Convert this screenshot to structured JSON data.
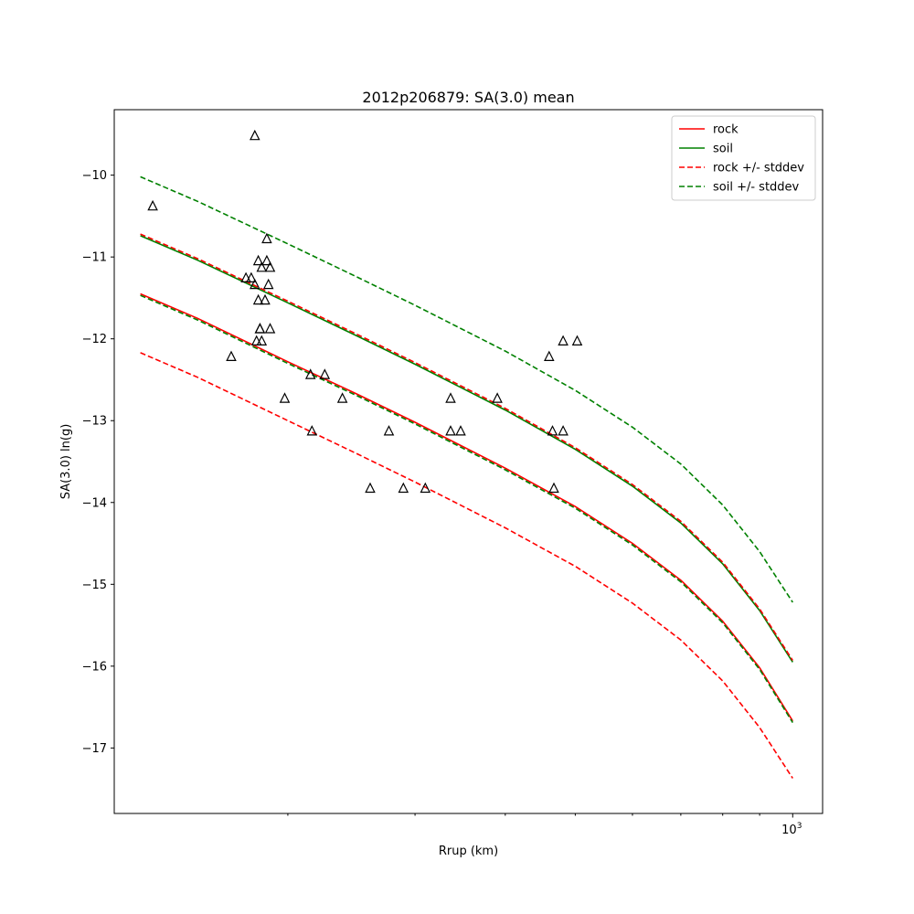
{
  "chart_data": {
    "type": "scatter",
    "title": "2012p206879: SA(3.0) mean",
    "xlabel": "Rrup (km)",
    "ylabel": "SA(3.0) ln(g)",
    "xscale": "log",
    "xlim": [
      115,
      1100
    ],
    "ylim": [
      -17.8,
      -9.2
    ],
    "yticks": [
      -10,
      -11,
      -12,
      -13,
      -14,
      -15,
      -16,
      -17
    ],
    "xtick_major": [
      {
        "value": 1000,
        "base": "10",
        "exp": "3"
      }
    ],
    "xtick_minor": [
      200,
      300,
      400,
      500,
      600,
      700,
      800,
      900
    ],
    "grid": false,
    "legend_position": "top-right",
    "series": [
      {
        "name": "rock",
        "color": "#ff0000",
        "dash": "solid",
        "x": [
          125,
          150,
          200,
          250,
          300,
          400,
          500,
          600,
          700,
          800,
          900,
          1000
        ],
        "y": [
          -11.45,
          -11.75,
          -12.28,
          -12.68,
          -13.02,
          -13.58,
          -14.05,
          -14.5,
          -14.95,
          -15.45,
          -16.02,
          -16.67
        ]
      },
      {
        "name": "soil",
        "color": "#008000",
        "dash": "solid",
        "x": [
          125,
          150,
          200,
          250,
          300,
          400,
          500,
          600,
          700,
          800,
          900,
          1000
        ],
        "y": [
          -10.74,
          -11.04,
          -11.56,
          -11.97,
          -12.31,
          -12.87,
          -13.35,
          -13.8,
          -14.25,
          -14.75,
          -15.32,
          -15.95
        ]
      },
      {
        "name": "rock +/- stddev",
        "color": "#ff0000",
        "dash": "dashed",
        "x": [
          125,
          150,
          200,
          250,
          300,
          400,
          500,
          600,
          700,
          800,
          900,
          1000
        ],
        "y": [
          -10.72,
          -11.02,
          -11.54,
          -11.95,
          -12.29,
          -12.85,
          -13.33,
          -13.78,
          -14.23,
          -14.73,
          -15.3,
          -15.93
        ]
      },
      {
        "name": "rock +/- stddev",
        "color": "#ff0000",
        "dash": "dashed",
        "legend": false,
        "x": [
          125,
          150,
          200,
          250,
          300,
          400,
          500,
          600,
          700,
          800,
          900,
          1000
        ],
        "y": [
          -12.17,
          -12.47,
          -13.0,
          -13.41,
          -13.75,
          -14.31,
          -14.78,
          -15.23,
          -15.68,
          -16.18,
          -16.75,
          -17.37
        ]
      },
      {
        "name": "soil +/- stddev",
        "color": "#008000",
        "dash": "dashed",
        "x": [
          125,
          150,
          200,
          250,
          300,
          400,
          500,
          600,
          700,
          800,
          900,
          1000
        ],
        "y": [
          -10.02,
          -10.32,
          -10.84,
          -11.25,
          -11.59,
          -12.15,
          -12.63,
          -13.08,
          -13.53,
          -14.03,
          -14.6,
          -15.22
        ]
      },
      {
        "name": "soil +/- stddev",
        "color": "#008000",
        "dash": "dashed",
        "legend": false,
        "x": [
          125,
          150,
          200,
          250,
          300,
          400,
          500,
          600,
          700,
          800,
          900,
          1000
        ],
        "y": [
          -11.47,
          -11.77,
          -12.3,
          -12.7,
          -13.04,
          -13.6,
          -14.07,
          -14.52,
          -14.97,
          -15.47,
          -16.04,
          -16.69
        ]
      }
    ],
    "points": {
      "marker": "triangle",
      "color": "#000000",
      "x": [
        130,
        167,
        180,
        175,
        178,
        182,
        184,
        187,
        180,
        186,
        188,
        189,
        183,
        189,
        187,
        181,
        183,
        182,
        184,
        198,
        215,
        225,
        238,
        216,
        260,
        276,
        289,
        310,
        336,
        336,
        347,
        390,
        460,
        465,
        467,
        481,
        481,
        503
      ],
      "y": [
        -10.38,
        -12.22,
        -9.52,
        -11.26,
        -11.26,
        -11.05,
        -11.13,
        -11.05,
        -11.34,
        -11.53,
        -11.34,
        -11.13,
        -11.88,
        -11.88,
        -10.78,
        -12.03,
        -11.88,
        -11.53,
        -12.03,
        -12.73,
        -12.44,
        -12.44,
        -12.73,
        -13.13,
        -13.83,
        -13.13,
        -13.83,
        -13.83,
        -12.73,
        -13.13,
        -13.13,
        -12.73,
        -12.22,
        -13.13,
        -13.83,
        -13.13,
        -12.03,
        -12.03
      ]
    }
  }
}
